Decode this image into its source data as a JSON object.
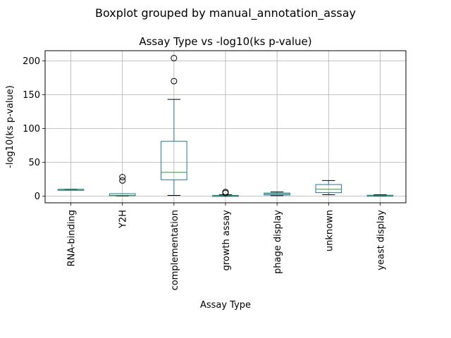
{
  "suptitle": "Boxplot grouped by manual_annotation_assay",
  "chart_data": {
    "type": "boxplot",
    "title": "Assay Type vs -log10(ks p-value)",
    "xlabel": "Assay Type",
    "ylabel": "-log10(ks p-value)",
    "ylim": [
      -10,
      215
    ],
    "yticks": [
      0,
      50,
      100,
      150,
      200
    ],
    "grid": true,
    "categories": [
      "RNA-binding",
      "Y2H",
      "complementation",
      "growth assay",
      "phage display",
      "unknown",
      "yeast display"
    ],
    "boxes": [
      {
        "category": "RNA-binding",
        "whisker_low": 9,
        "q1": 9,
        "median": 9.5,
        "q3": 10,
        "whisker_high": 10,
        "outliers": []
      },
      {
        "category": "Y2H",
        "whisker_low": 0,
        "q1": 0.5,
        "median": 1,
        "q3": 3.5,
        "whisker_high": 3.5,
        "outliers": [
          23,
          28
        ]
      },
      {
        "category": "complementation",
        "whisker_low": 1,
        "q1": 24,
        "median": 35,
        "q3": 81,
        "whisker_high": 143,
        "outliers": [
          170,
          204
        ]
      },
      {
        "category": "growth assay",
        "whisker_low": 0,
        "q1": 0,
        "median": 0.5,
        "q3": 1,
        "whisker_high": 2,
        "outliers": [
          4.5,
          6
        ]
      },
      {
        "category": "phage display",
        "whisker_low": 0.5,
        "q1": 1.5,
        "median": 3,
        "q3": 4.5,
        "whisker_high": 6,
        "outliers": []
      },
      {
        "category": "unknown",
        "whisker_low": 2,
        "q1": 5,
        "median": 10,
        "q3": 17,
        "whisker_high": 23,
        "outliers": []
      },
      {
        "category": "yeast display",
        "whisker_low": 0,
        "q1": 0.2,
        "median": 0.8,
        "q3": 1.2,
        "whisker_high": 2,
        "outliers": []
      }
    ],
    "colors": {
      "box": "#1f77b4",
      "median": "#2ca02c",
      "whisker_cap": "#000000",
      "grid": "#b0b0b0",
      "outlier": "#000000"
    }
  }
}
